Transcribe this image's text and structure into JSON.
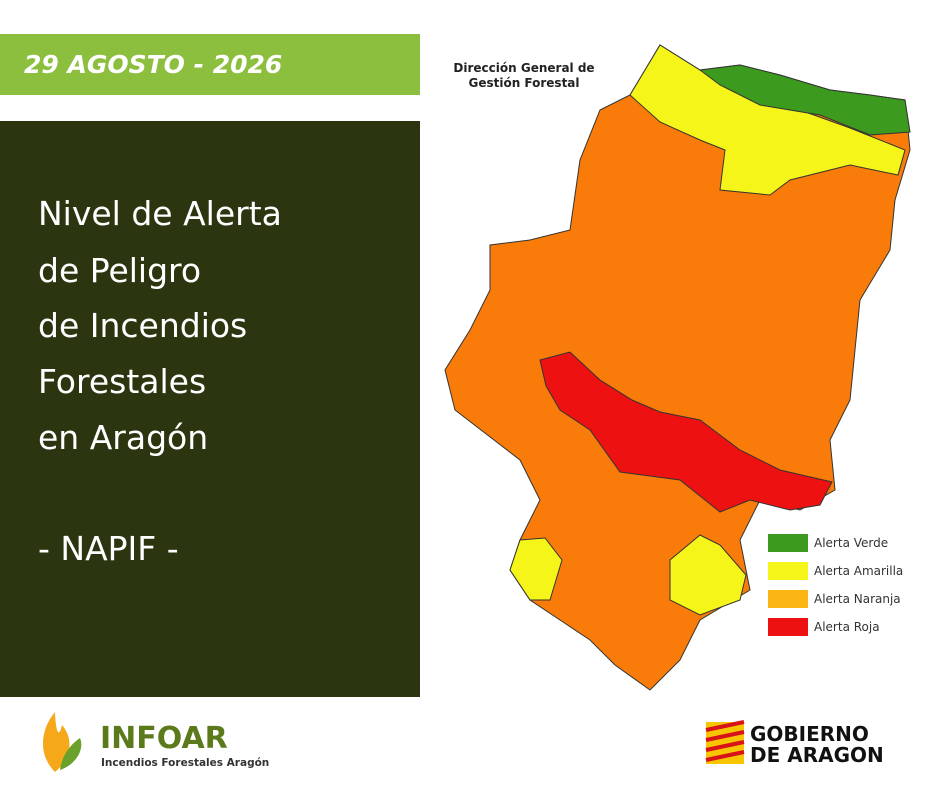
{
  "header": {
    "date": "29 AGOSTO - 2026"
  },
  "title": {
    "lines": [
      "Nivel de Alerta",
      "de Peligro",
      "de Incendios",
      "Forestales",
      "en Aragón"
    ],
    "tag": "- NAPIF -"
  },
  "map": {
    "source_lines": [
      "Dirección General de",
      "Gestión Forestal"
    ],
    "legend": [
      {
        "label": "Alerta Verde",
        "color": "#3c9a1e"
      },
      {
        "label": "Alerta Amarilla",
        "color": "#f5f51a"
      },
      {
        "label": "Alerta Naranja",
        "color": "#fcb614"
      },
      {
        "label": "Alerta Roja",
        "color": "#ee1111"
      }
    ]
  },
  "footer": {
    "infoar": "INFOAR",
    "infoar_sub": "Incendios Forestales Aragón",
    "gobierno_lines": [
      "GOBIERNO",
      "DE ARAGON"
    ]
  }
}
